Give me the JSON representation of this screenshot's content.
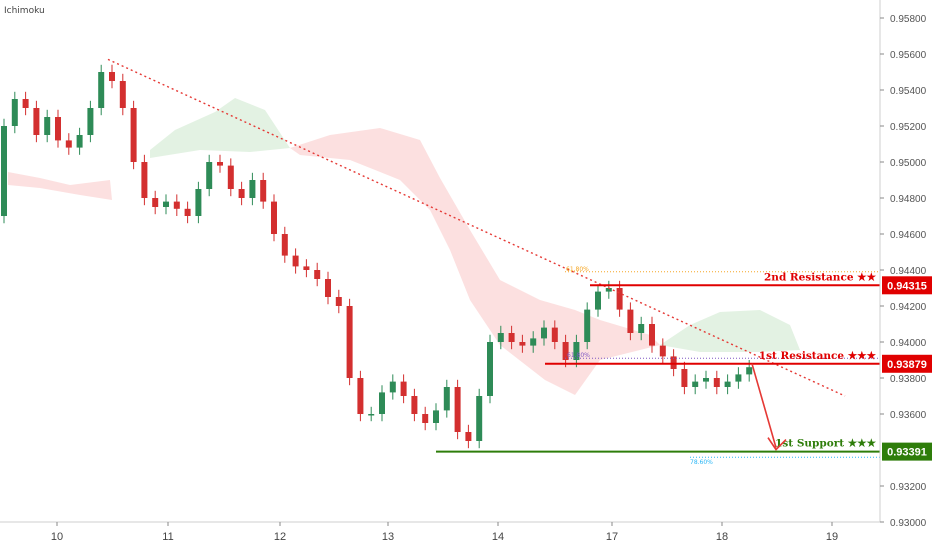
{
  "indicator": "Ichimoku",
  "price_axis": {
    "ticks": [
      "0.95800",
      "0.95600",
      "0.95400",
      "0.95200",
      "0.95000",
      "0.94800",
      "0.94600",
      "0.94400",
      "0.94200",
      "0.94000",
      "0.93800",
      "0.93600",
      "0.93200",
      "0.93000"
    ]
  },
  "time_axis": {
    "ticks": [
      "10",
      "11",
      "12",
      "13",
      "14",
      "17",
      "18",
      "19"
    ]
  },
  "annotations": {
    "second_resistance": {
      "label": "2nd Resistance",
      "stars": "★★",
      "price": "0.94315",
      "color": "#e00000"
    },
    "first_resistance": {
      "label": "1st Resistance",
      "stars": "★★★",
      "price": "0.93879",
      "color": "#e00000"
    },
    "first_support": {
      "label": "1st Support",
      "stars": "★★★",
      "price": "0.93391",
      "color": "#2e7d0a"
    },
    "fib_61": "61.80%",
    "fib_50": "61.80%",
    "fib_78": "78.60%"
  },
  "colors": {
    "bull": "#2e8b57",
    "bear": "#d32f2f",
    "cloud_bear": "#fbd5d5",
    "cloud_bull": "#dcefdc",
    "trendline": "#e53935"
  },
  "chart_data": {
    "type": "candlestick",
    "title": "",
    "ylim": [
      0.93,
      0.959
    ],
    "yticks": [
      0.958,
      0.956,
      0.954,
      0.952,
      0.95,
      0.948,
      0.946,
      0.944,
      0.942,
      0.94,
      0.938,
      0.936,
      0.932,
      0.93
    ],
    "xticks": [
      "10",
      "11",
      "12",
      "13",
      "14",
      "17",
      "18",
      "19"
    ],
    "horizontal_levels": [
      {
        "name": "2nd Resistance",
        "value": 0.94315
      },
      {
        "name": "1st Resistance",
        "value": 0.93879
      },
      {
        "name": "1st Support",
        "value": 0.93391
      }
    ],
    "fib_levels": [
      {
        "label": "61.80%",
        "value": 0.9439
      },
      {
        "label": "61.80%",
        "value": 0.9391
      },
      {
        "label": "78.60%",
        "value": 0.9336
      }
    ],
    "trendline": {
      "from": {
        "x": "10",
        "y": 0.9557
      },
      "to": {
        "x": "18",
        "y": 0.937
      }
    },
    "projection_arrow": {
      "from": 0.93879,
      "to": 0.93391
    },
    "close_series": [
      0.952,
      0.9535,
      0.953,
      0.9515,
      0.9525,
      0.9512,
      0.9508,
      0.9515,
      0.953,
      0.955,
      0.9545,
      0.953,
      0.95,
      0.948,
      0.9475,
      0.9478,
      0.9474,
      0.947,
      0.9485,
      0.95,
      0.9498,
      0.9485,
      0.948,
      0.949,
      0.9478,
      0.946,
      0.9448,
      0.9442,
      0.944,
      0.9435,
      0.9425,
      0.942,
      0.938,
      0.936,
      0.936,
      0.9372,
      0.9378,
      0.937,
      0.936,
      0.9355,
      0.9362,
      0.9375,
      0.935,
      0.9345,
      0.937,
      0.94,
      0.9405,
      0.94,
      0.9398,
      0.9402,
      0.9408,
      0.94,
      0.939,
      0.94,
      0.9418,
      0.9428,
      0.943,
      0.9418,
      0.9405,
      0.941,
      0.9398,
      0.9392,
      0.9385,
      0.9375,
      0.9378,
      0.938,
      0.9375,
      0.9378,
      0.9382,
      0.9386
    ]
  }
}
